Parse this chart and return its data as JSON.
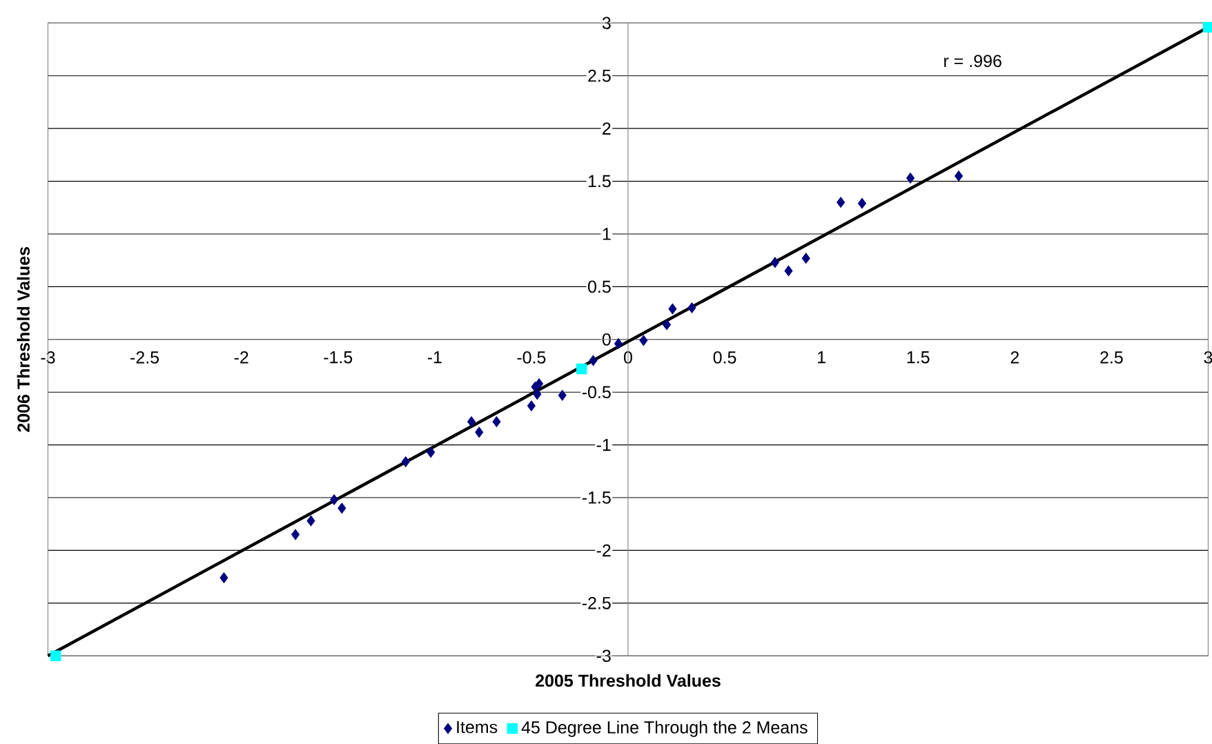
{
  "chart_data": {
    "type": "scatter",
    "xlabel": "2005 Threshold Values",
    "ylabel": "2006 Threshold Values",
    "annotations": [
      "r = .996"
    ],
    "xlim": [
      -3,
      3
    ],
    "ylim": [
      -3,
      3
    ],
    "xticks": [
      -3,
      -2.5,
      -2,
      -1.5,
      -1,
      -0.5,
      0,
      0.5,
      1,
      1.5,
      2,
      2.5,
      3
    ],
    "yticks": [
      -3,
      -2.5,
      -2,
      -1.5,
      -1,
      -0.5,
      0,
      0.5,
      1,
      1.5,
      2,
      2.5,
      3
    ],
    "grid": "y",
    "legend": "bottom",
    "series": [
      {
        "name": "Items",
        "color": "#000080",
        "marker": "diamond",
        "x": [
          -2.09,
          -1.72,
          -1.64,
          -1.52,
          -1.48,
          -1.15,
          -1.02,
          -0.81,
          -0.77,
          -0.68,
          -0.5,
          -0.48,
          -0.46,
          -0.47,
          -0.34,
          -0.18,
          -0.05,
          0.08,
          0.2,
          0.23,
          0.33,
          0.76,
          0.83,
          0.92,
          1.1,
          1.21,
          1.46,
          1.71
        ],
        "values": [
          -2.26,
          -1.85,
          -1.72,
          -1.52,
          -1.6,
          -1.16,
          -1.07,
          -0.78,
          -0.88,
          -0.78,
          -0.63,
          -0.45,
          -0.42,
          -0.52,
          -0.53,
          -0.2,
          -0.04,
          -0.01,
          0.14,
          0.29,
          0.3,
          0.73,
          0.65,
          0.77,
          1.3,
          1.29,
          1.53,
          1.55
        ]
      },
      {
        "name": "45 Degree Line Through the 2 Means",
        "color": "#00ffff",
        "marker": "square",
        "x": [
          -2.96,
          -0.24,
          3
        ],
        "values": [
          -3,
          -0.28,
          2.96
        ]
      },
      {
        "type": "line",
        "color": "#000000",
        "line_style": "solid",
        "x": [
          -3,
          3
        ],
        "values": [
          -3,
          2.96
        ]
      }
    ]
  }
}
